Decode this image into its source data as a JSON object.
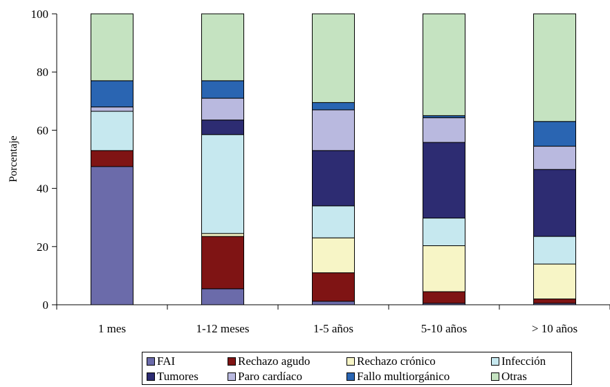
{
  "chart_data": {
    "type": "bar",
    "stacked": true,
    "categories": [
      "1 mes",
      "1-12 meses",
      "1-5 años",
      "5-10 años",
      "> 10 años"
    ],
    "ylabel": "Porcentaje",
    "xlabel": "",
    "ylim": [
      0,
      100
    ],
    "yticks": [
      0,
      20,
      40,
      60,
      80,
      100
    ],
    "grid": false,
    "legend_position": "bottom",
    "series": [
      {
        "name": "FAI",
        "color": "#6b6baa",
        "values": [
          47.5,
          5.5,
          1.2,
          0.5,
          0.5
        ]
      },
      {
        "name": "Rechazo agudo",
        "color": "#7f1414",
        "values": [
          5.5,
          18.0,
          9.8,
          4.0,
          1.5
        ]
      },
      {
        "name": "Rechazo crónico",
        "color": "#f7f5c6",
        "values": [
          0,
          1.0,
          12.0,
          15.8,
          12.0
        ]
      },
      {
        "name": "Infección",
        "color": "#c6e8ef",
        "values": [
          13.5,
          34.0,
          11.0,
          9.5,
          9.5
        ]
      },
      {
        "name": "Tumores",
        "color": "#2d2c72",
        "values": [
          0,
          5.0,
          19.0,
          26.0,
          23.0
        ]
      },
      {
        "name": "Paro cardíaco",
        "color": "#b9b9df",
        "values": [
          1.5,
          7.5,
          14.0,
          8.5,
          8.0
        ]
      },
      {
        "name": "Fallo multiorgánico",
        "color": "#2a65b2",
        "values": [
          9.0,
          6.0,
          2.5,
          0.7,
          8.5
        ]
      },
      {
        "name": "Otras",
        "color": "#c5e3c1",
        "values": [
          23.0,
          23.0,
          30.5,
          35.0,
          37.0
        ]
      }
    ]
  }
}
